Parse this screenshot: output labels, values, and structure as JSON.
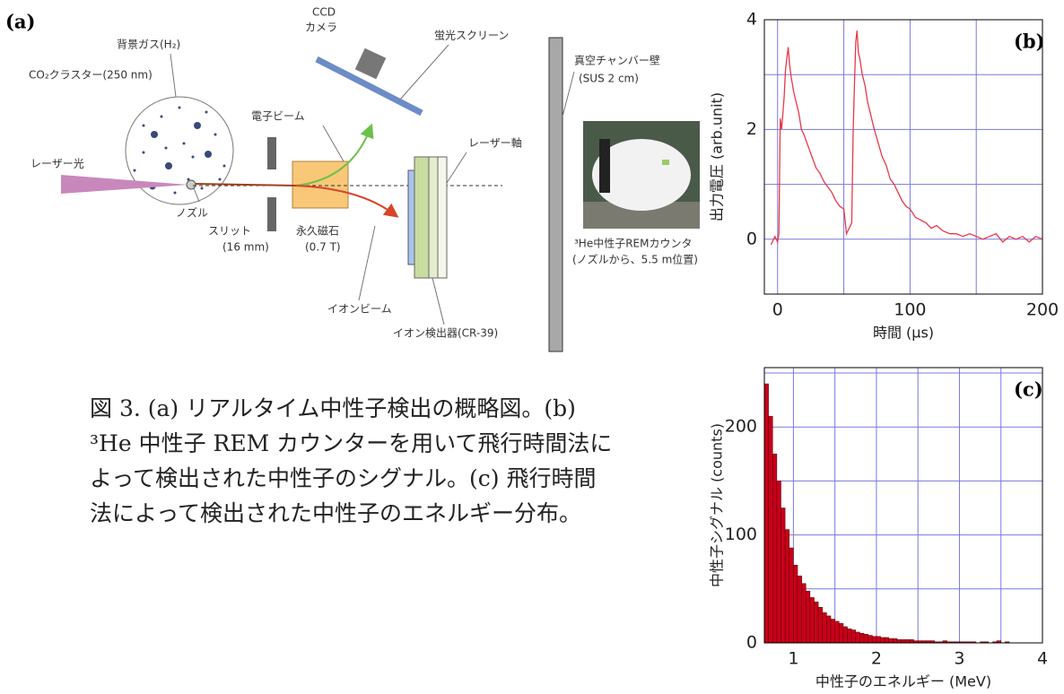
{
  "diagram": {
    "panel_label": "(a)",
    "background_gas": "背景ガス(H₂)",
    "cluster": "CO₂クラスター(250 nm)",
    "ccd_camera": [
      "CCD",
      "カメラ"
    ],
    "screen": "蛍光スクリーン",
    "wall": [
      "真空チャンバー壁",
      "(SUS 2 cm)"
    ],
    "electron_beam": "電子ビーム",
    "laser_axis": "レーザー軸",
    "laser": "レーザー光",
    "nozzle": "ノズル",
    "slit": [
      "スリット",
      "(16 mm)"
    ],
    "magnet": [
      "永久磁石",
      "(0.7 T)"
    ],
    "ion_beam": "イオンビーム",
    "detector": "イオン検出器(CR-39)",
    "rem_counter": [
      "³He中性子REMカウンタ",
      "(ノズルから、5.5 m位置)"
    ]
  },
  "chart_data": [
    {
      "type": "line",
      "panel_label": "(b)",
      "x_label": "時間 (μs)",
      "y_label": "出力電圧 (arb.unit)",
      "color": "#e8384a",
      "grid_color": "#7878e0",
      "x": [
        -5,
        -2,
        0,
        1,
        2,
        3,
        4,
        5,
        6,
        7,
        8,
        9,
        10,
        12,
        14,
        16,
        18,
        20,
        23,
        26,
        29,
        32,
        35,
        38,
        41,
        44,
        47,
        50,
        51,
        52,
        54,
        56,
        57,
        58,
        59,
        60,
        61,
        62,
        64,
        66,
        68,
        70,
        73,
        76,
        79,
        82,
        85,
        88,
        91,
        94,
        97,
        100,
        104,
        108,
        112,
        116,
        120,
        125,
        130,
        135,
        140,
        145,
        150,
        155,
        160,
        165,
        170,
        175,
        180,
        185,
        190,
        195,
        200
      ],
      "values": [
        -0.1,
        0.05,
        -0.05,
        0.1,
        2.2,
        2.0,
        2.3,
        2.6,
        3.1,
        3.3,
        3.5,
        3.2,
        3.0,
        2.7,
        2.5,
        2.3,
        2.0,
        1.9,
        1.7,
        1.5,
        1.3,
        1.2,
        1.05,
        0.95,
        0.85,
        0.7,
        0.6,
        0.55,
        0.35,
        0.1,
        0.2,
        0.3,
        1.9,
        2.8,
        3.6,
        3.8,
        3.4,
        3.3,
        3.0,
        2.8,
        2.5,
        2.3,
        2.0,
        1.75,
        1.5,
        1.35,
        1.1,
        1.0,
        0.85,
        0.7,
        0.6,
        0.55,
        0.4,
        0.35,
        0.3,
        0.2,
        0.25,
        0.15,
        0.1,
        0.1,
        0.05,
        0.1,
        0.05,
        0.0,
        0.05,
        0.1,
        -0.05,
        0.05,
        0.0,
        0.05,
        -0.05,
        0.05,
        0.0
      ],
      "xlim": [
        -10,
        200
      ],
      "ylim": [
        -1,
        4
      ],
      "xticks": [
        0,
        100,
        200
      ],
      "yticks": [
        0,
        2,
        4
      ],
      "minor_xticks": [
        50,
        150
      ],
      "minor_yticks": [
        1,
        3
      ],
      "grid": true
    },
    {
      "type": "histogram",
      "panel_label": "(c)",
      "x_label": "中性子のエネルギー (MeV)",
      "y_label": "中性子シグナル (counts)",
      "color": "#c8001a",
      "grid_color": "#7878e0",
      "bins": [
        0.65,
        0.7,
        0.75,
        0.8,
        0.85,
        0.9,
        0.95,
        1.0,
        1.05,
        1.1,
        1.15,
        1.2,
        1.25,
        1.3,
        1.35,
        1.4,
        1.45,
        1.5,
        1.55,
        1.6,
        1.65,
        1.7,
        1.75,
        1.8,
        1.85,
        1.9,
        1.95,
        2.0,
        2.05,
        2.1,
        2.15,
        2.2,
        2.25,
        2.3,
        2.35,
        2.4,
        2.45,
        2.5,
        2.55,
        2.6,
        2.65,
        2.7,
        2.75,
        2.8,
        2.85,
        2.9,
        2.95,
        3.0,
        3.05,
        3.1,
        3.15,
        3.2,
        3.25,
        3.3,
        3.35,
        3.4,
        3.45,
        3.5,
        3.55,
        3.6,
        3.65
      ],
      "values": [
        240,
        210,
        175,
        150,
        125,
        105,
        88,
        72,
        62,
        55,
        48,
        42,
        38,
        33,
        28,
        25,
        22,
        20,
        18,
        15,
        13,
        12,
        10,
        9,
        8,
        7,
        6,
        6,
        5,
        5,
        4,
        4,
        3,
        3,
        3,
        3,
        2,
        2,
        2,
        2,
        2,
        1,
        1,
        2,
        1,
        1,
        1,
        1,
        1,
        1,
        1,
        0,
        1,
        1,
        0,
        1,
        2,
        0,
        1,
        0
      ],
      "xlim": [
        0.65,
        4
      ],
      "ylim": [
        0,
        255
      ],
      "xticks": [
        1,
        2,
        3,
        4
      ],
      "yticks": [
        0,
        100,
        200
      ],
      "minor_xticks": [
        1.5,
        2.5,
        3.5
      ],
      "minor_yticks": [
        50,
        150,
        250
      ],
      "grid": true
    }
  ],
  "caption": "図 3. (a) リアルタイム中性子検出の概略図。(b) ³He 中性子 REM カウンターを用いて飛行時間法によって検出された中性子のシグナル。(c) 飛行時間法によって検出された中性子のエネルギー分布。"
}
